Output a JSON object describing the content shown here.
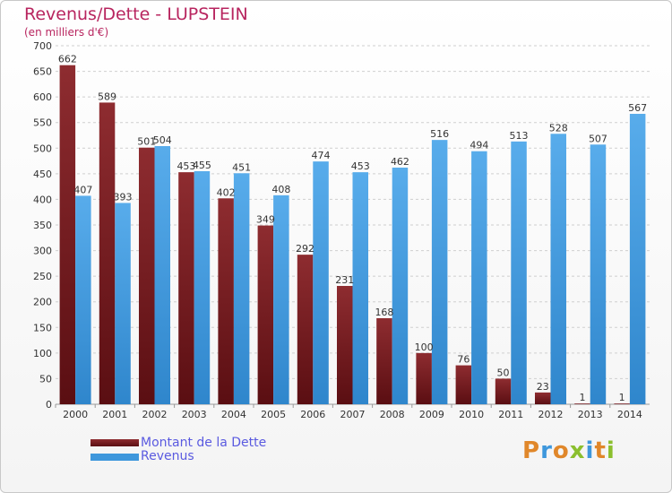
{
  "title": "Revenus/Dette - LUPSTEIN",
  "subtitle": "(en milliers d'€)",
  "colors": {
    "debt": "#7a1f24",
    "revenue": "#3e97dc",
    "title": "#b8255f",
    "legend_text": "#5a5ae0"
  },
  "legend": {
    "debt_label": "Montant de la Dette",
    "revenue_label": "Revenus"
  },
  "logo": {
    "text": "Proxiti"
  },
  "chart_data": {
    "type": "bar",
    "title": "Revenus/Dette - LUPSTEIN",
    "subtitle": "(en milliers d'€)",
    "categories": [
      "2000",
      "2001",
      "2002",
      "2003",
      "2004",
      "2005",
      "2006",
      "2007",
      "2008",
      "2009",
      "2010",
      "2011",
      "2012",
      "2013",
      "2014"
    ],
    "series": [
      {
        "name": "Montant de la Dette",
        "values": [
          662,
          589,
          501,
          453,
          402,
          349,
          292,
          231,
          168,
          100,
          76,
          50,
          23,
          1,
          1
        ]
      },
      {
        "name": "Revenus",
        "values": [
          407,
          393,
          504,
          455,
          451,
          408,
          474,
          453,
          462,
          516,
          494,
          513,
          528,
          507,
          567
        ]
      }
    ],
    "ylim": [
      0,
      700
    ],
    "yticks": [
      0,
      50,
      100,
      150,
      200,
      250,
      300,
      350,
      400,
      450,
      500,
      550,
      600,
      650,
      700
    ],
    "grid": true,
    "legend_position": "bottom-left"
  }
}
